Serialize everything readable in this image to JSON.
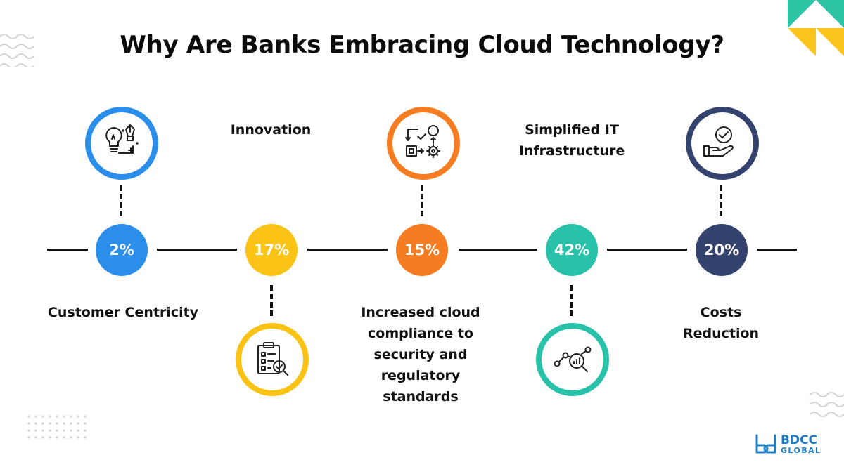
{
  "title": "Why Are Banks Embracing Cloud Technology?",
  "colors": {
    "blue": "#2a8eea",
    "yellow": "#fac316",
    "orange": "#f57c20",
    "teal": "#27c2a9",
    "navy": "#34436d",
    "corner_teal": "#2ec4a6",
    "corner_yellow": "#f9c51c"
  },
  "items": [
    {
      "percent": "2%",
      "label": "Customer Centricity",
      "icon": "lightbulb-pen-icon",
      "icon_side": "top",
      "label_side": "bottom"
    },
    {
      "percent": "17%",
      "label": "Innovation",
      "icon": "clipboard-magnifier-icon",
      "icon_side": "bottom",
      "label_side": "top"
    },
    {
      "percent": "15%",
      "label": "Increased cloud\ncompliance to\nsecurity and\nregulatory\nstandards",
      "icon": "workflow-gear-icon",
      "icon_side": "top",
      "label_side": "bottom"
    },
    {
      "percent": "42%",
      "label": "Simplified IT\nInfrastructure",
      "icon": "analytics-magnifier-icon",
      "icon_side": "bottom",
      "label_side": "top"
    },
    {
      "percent": "20%",
      "label": "Costs\nReduction",
      "icon": "hand-check-icon",
      "icon_side": "top",
      "label_side": "bottom"
    }
  ],
  "logo": {
    "line1": "BDCC",
    "line2": "GLOBAL"
  }
}
